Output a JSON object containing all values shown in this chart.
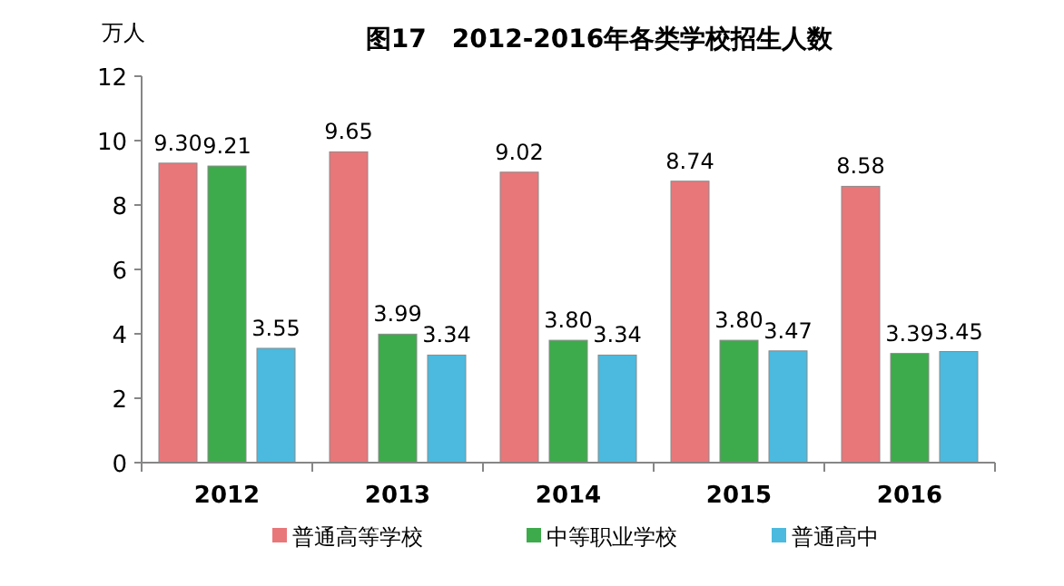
{
  "chart_data": {
    "type": "bar",
    "title": "图17　2012-2016年各类学校招生人数",
    "ylabel": "万人",
    "categories": [
      "2012",
      "2013",
      "2014",
      "2015",
      "2016"
    ],
    "series": [
      {
        "name": "普通高等学校",
        "color": "#e8777a",
        "values": [
          9.3,
          9.65,
          9.02,
          8.74,
          8.58
        ],
        "value_labels": [
          "9.30",
          "9.65",
          "9.02",
          "8.74",
          "8.58"
        ]
      },
      {
        "name": "中等职业学校",
        "color": "#3dab4b",
        "values": [
          9.21,
          3.99,
          3.8,
          3.8,
          3.39
        ],
        "value_labels": [
          "9.21",
          "3.99",
          "3.80",
          "3.80",
          "3.39"
        ]
      },
      {
        "name": "普通高中",
        "color": "#4bbade",
        "values": [
          3.55,
          3.34,
          3.34,
          3.47,
          3.45
        ],
        "value_labels": [
          "3.55",
          "3.34",
          "3.34",
          "3.47",
          "3.45"
        ]
      }
    ],
    "ylim": [
      0,
      12
    ],
    "yticks": [
      0,
      2,
      4,
      6,
      8,
      10,
      12
    ],
    "grid": false,
    "legend": "bottom"
  }
}
